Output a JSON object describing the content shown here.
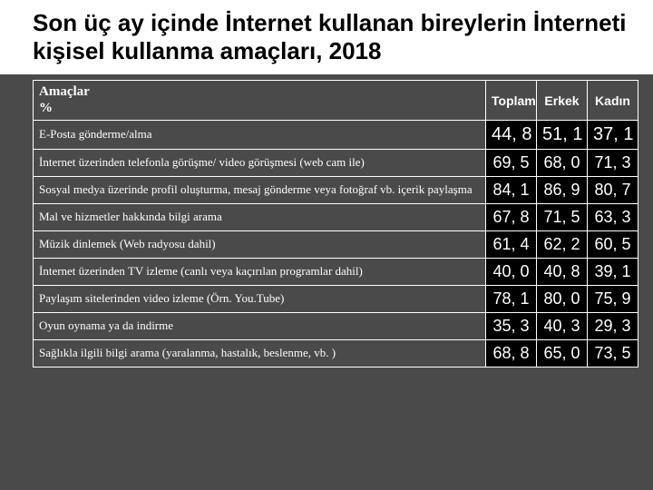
{
  "title": "Son üç ay içinde İnternet kullanan bireylerin İnterneti kişisel kullanma amaçları, 2018",
  "table": {
    "type": "table",
    "background_color": "#4a4a4a",
    "title_bg": "#ffffff",
    "title_color": "#000000",
    "title_fontsize": 26,
    "header_label_line1": "Amaçlar",
    "header_label_line2": "%",
    "columns_numeric": [
      "Toplam",
      "Erkek",
      "Kadın"
    ],
    "header_font": "Comic Sans MS",
    "header_color": "#ffffff",
    "label_font": "Comic Sans MS",
    "label_color": "#ffffff",
    "label_fontsize": 13,
    "num_cell_bg": "#000000",
    "num_cell_color": "#ffffff",
    "num_fontsize": 18,
    "border_color": "#ffffff",
    "rows": [
      {
        "label": "E-Posta gönderme/alma",
        "values": [
          "44, 8",
          "51, 1",
          "37, 1"
        ]
      },
      {
        "label": "İnternet üzerinden telefonla görüşme/ video görüşmesi (web cam ile)",
        "values": [
          "69, 5",
          "68, 0",
          "71, 3"
        ]
      },
      {
        "label": "Sosyal medya üzerinde profil oluşturma, mesaj gönderme veya fotoğraf vb. içerik paylaşma",
        "values": [
          "84, 1",
          "86, 9",
          "80, 7"
        ]
      },
      {
        "label": "Mal ve hizmetler hakkında bilgi arama",
        "values": [
          "67, 8",
          "71, 5",
          "63, 3"
        ]
      },
      {
        "label": "Müzik dinlemek (Web radyosu dahil)",
        "values": [
          "61, 4",
          "62, 2",
          "60, 5"
        ]
      },
      {
        "label": "İnternet üzerinden TV izleme (canlı veya kaçırılan programlar dahil)",
        "values": [
          "40, 0",
          "40, 8",
          "39, 1"
        ]
      },
      {
        "label": "Paylaşım sitelerinden video izleme (Örn. You.Tube)",
        "values": [
          "78, 1",
          "80, 0",
          "75, 9"
        ]
      },
      {
        "label": "Oyun oynama ya da indirme",
        "values": [
          "35, 3",
          "40, 3",
          "29, 3"
        ]
      },
      {
        "label": "Sağlıkla ilgili bilgi arama (yaralanma, hastalık, beslenme, vb. )",
        "values": [
          "68, 8",
          "65, 0",
          "73, 5"
        ]
      }
    ]
  }
}
